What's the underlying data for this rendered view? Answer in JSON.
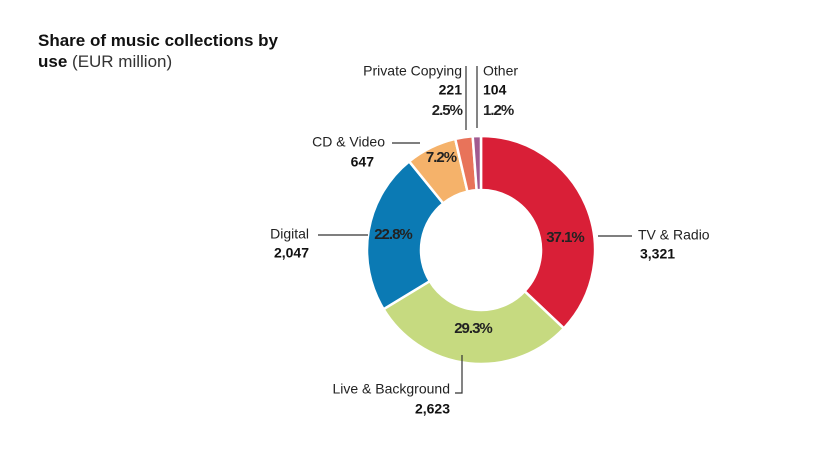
{
  "chart_data": {
    "type": "pie",
    "title": "Share of music collections by use",
    "unit": "(EUR million)",
    "categories": [
      "TV & Radio",
      "Live & Background",
      "Digital",
      "CD & Video",
      "Private Copying",
      "Other"
    ],
    "values": [
      3321,
      2623,
      2047,
      647,
      221,
      104
    ],
    "value_labels": [
      "3,321",
      "2,623",
      "2,047",
      "647",
      "221",
      "104"
    ],
    "shares": [
      37.1,
      29.3,
      22.8,
      7.2,
      2.5,
      1.2
    ],
    "share_labels": [
      "37.1%",
      "29.3%",
      "22.8%",
      "7.2%",
      "2.5%",
      "1.2%"
    ],
    "colors": [
      "#d91f37",
      "#c6da80",
      "#0b7ab4",
      "#f5b26a",
      "#e8735a",
      "#a15a90"
    ]
  }
}
